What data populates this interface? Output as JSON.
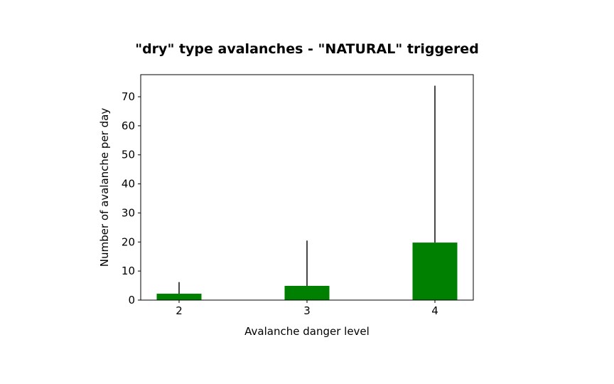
{
  "chart_data": {
    "type": "bar",
    "title": "\"dry\" type avalanches - \"NATURAL\" triggered",
    "xlabel": "Avalanche danger level",
    "ylabel": "Number of avalanche per day",
    "categories": [
      "2",
      "3",
      "4"
    ],
    "values": [
      2.2,
      4.9,
      19.8
    ],
    "error_upper": [
      6.2,
      20.5,
      73.8
    ],
    "ylim": [
      0,
      77.6
    ],
    "yticks": [
      "0",
      "10",
      "20",
      "30",
      "40",
      "50",
      "60",
      "70"
    ],
    "ytick_values": [
      0,
      10,
      20,
      30,
      40,
      50,
      60,
      70
    ],
    "grid": false,
    "colors": {
      "bar": "#008000",
      "error": "#333333",
      "axis": "#000000"
    }
  }
}
